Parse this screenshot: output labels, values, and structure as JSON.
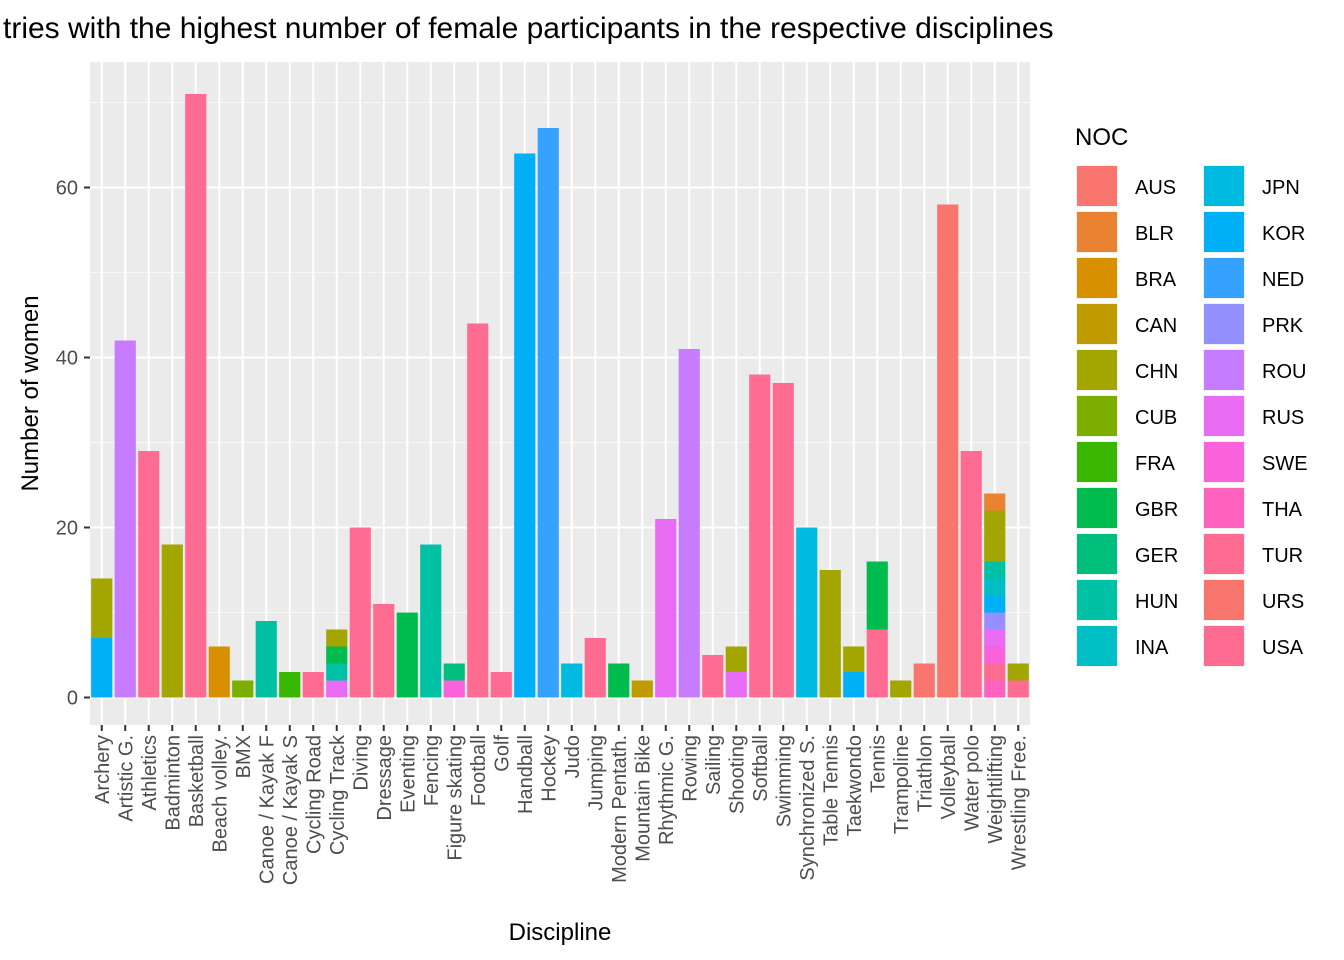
{
  "chart_data": {
    "type": "bar",
    "stacked": true,
    "title": "tries with the highest number of female participants in the respective disciplines",
    "xlabel": "Discipline",
    "ylabel": "Number of women",
    "ylim": [
      0,
      72
    ],
    "yticks": [
      0,
      20,
      40,
      60
    ],
    "grid": true,
    "legend": {
      "title": "NOC",
      "position": "right",
      "entries": [
        "AUS",
        "BLR",
        "BRA",
        "CAN",
        "CHN",
        "CUB",
        "FRA",
        "GBR",
        "GER",
        "HUN",
        "INA",
        "JPN",
        "KOR",
        "NED",
        "PRK",
        "ROU",
        "RUS",
        "SWE",
        "THA",
        "TUR",
        "URS",
        "USA"
      ]
    },
    "colors": {
      "AUS": "#F8766D",
      "BLR": "#EA8331",
      "BRA": "#D89000",
      "CAN": "#C09B00",
      "CHN": "#A3A500",
      "CUB": "#7CAE00",
      "FRA": "#39B600",
      "GBR": "#00BB4E",
      "GER": "#00BF7D",
      "HUN": "#00C1A3",
      "INA": "#00BFC4",
      "JPN": "#00BAE0",
      "KOR": "#00B0F6",
      "NED": "#35A2FF",
      "PRK": "#9590FF",
      "ROU": "#C77CFF",
      "RUS": "#E76BF3",
      "SWE": "#FA62DB",
      "THA": "#FF62BC",
      "TUR": "#FF6C91",
      "URS": "#F8766D",
      "USA": "#FF6C91"
    },
    "categories": [
      "Archery",
      "Artistic G.",
      "Athletics",
      "Badminton",
      "Basketball",
      "Beach volley.",
      "BMX",
      "Canoe / Kayak F",
      "Canoe / Kayak S",
      "Cycling Road",
      "Cycling Track",
      "Diving",
      "Dressage",
      "Eventing",
      "Fencing",
      "Figure skating",
      "Football",
      "Golf",
      "Handball",
      "Hockey",
      "Judo",
      "Jumping",
      "Modern Pentath.",
      "Mountain Bike",
      "Rhythmic G.",
      "Rowing",
      "Sailing",
      "Shooting",
      "Softball",
      "Swimming",
      "Synchronized S.",
      "Table Tennis",
      "Taekwondo",
      "Tennis",
      "Trampoline",
      "Triathlon",
      "Volleyball",
      "Water polo",
      "Weightlifting",
      "Wrestling Free."
    ],
    "bars": [
      [
        {
          "noc": "KOR",
          "value": 7
        },
        {
          "noc": "CHN",
          "value": 7
        }
      ],
      [
        {
          "noc": "ROU",
          "value": 42
        }
      ],
      [
        {
          "noc": "USA",
          "value": 29
        }
      ],
      [
        {
          "noc": "CHN",
          "value": 18
        }
      ],
      [
        {
          "noc": "USA",
          "value": 71
        }
      ],
      [
        {
          "noc": "BRA",
          "value": 6
        }
      ],
      [
        {
          "noc": "CUB",
          "value": 2
        }
      ],
      [
        {
          "noc": "HUN",
          "value": 9
        }
      ],
      [
        {
          "noc": "FRA",
          "value": 3
        }
      ],
      [
        {
          "noc": "USA",
          "value": 3
        }
      ],
      [
        {
          "noc": "RUS",
          "value": 2
        },
        {
          "noc": "HUN",
          "value": 2
        },
        {
          "noc": "GBR",
          "value": 2
        },
        {
          "noc": "CHN",
          "value": 2
        }
      ],
      [
        {
          "noc": "USA",
          "value": 20
        }
      ],
      [
        {
          "noc": "USA",
          "value": 11
        }
      ],
      [
        {
          "noc": "GBR",
          "value": 10
        }
      ],
      [
        {
          "noc": "HUN",
          "value": 18
        }
      ],
      [
        {
          "noc": "SWE",
          "value": 2
        },
        {
          "noc": "GER",
          "value": 2
        }
      ],
      [
        {
          "noc": "USA",
          "value": 44
        }
      ],
      [
        {
          "noc": "USA",
          "value": 3
        }
      ],
      [
        {
          "noc": "KOR",
          "value": 64
        }
      ],
      [
        {
          "noc": "NED",
          "value": 67
        }
      ],
      [
        {
          "noc": "JPN",
          "value": 4
        }
      ],
      [
        {
          "noc": "USA",
          "value": 7
        }
      ],
      [
        {
          "noc": "GBR",
          "value": 4
        }
      ],
      [
        {
          "noc": "CAN",
          "value": 2
        }
      ],
      [
        {
          "noc": "RUS",
          "value": 21
        }
      ],
      [
        {
          "noc": "ROU",
          "value": 41
        }
      ],
      [
        {
          "noc": "USA",
          "value": 5
        }
      ],
      [
        {
          "noc": "RUS",
          "value": 3
        },
        {
          "noc": "CHN",
          "value": 3
        }
      ],
      [
        {
          "noc": "USA",
          "value": 38
        }
      ],
      [
        {
          "noc": "USA",
          "value": 37
        }
      ],
      [
        {
          "noc": "JPN",
          "value": 20
        }
      ],
      [
        {
          "noc": "CHN",
          "value": 15
        }
      ],
      [
        {
          "noc": "KOR",
          "value": 3
        },
        {
          "noc": "CHN",
          "value": 3
        }
      ],
      [
        {
          "noc": "USA",
          "value": 8
        },
        {
          "noc": "GBR",
          "value": 8
        }
      ],
      [
        {
          "noc": "CHN",
          "value": 2
        }
      ],
      [
        {
          "noc": "AUS",
          "value": 4
        }
      ],
      [
        {
          "noc": "URS",
          "value": 58
        }
      ],
      [
        {
          "noc": "USA",
          "value": 29
        }
      ],
      [
        {
          "noc": "THA",
          "value": 2
        },
        {
          "noc": "TUR",
          "value": 2
        },
        {
          "noc": "SWE",
          "value": 2
        },
        {
          "noc": "RUS",
          "value": 2
        },
        {
          "noc": "PRK",
          "value": 2
        },
        {
          "noc": "KOR",
          "value": 2
        },
        {
          "noc": "INA",
          "value": 2
        },
        {
          "noc": "HUN",
          "value": 2
        },
        {
          "noc": "CHN",
          "value": 6
        },
        {
          "noc": "BLR",
          "value": 2
        }
      ],
      [
        {
          "noc": "TUR",
          "value": 2
        },
        {
          "noc": "CHN",
          "value": 2
        }
      ]
    ]
  }
}
